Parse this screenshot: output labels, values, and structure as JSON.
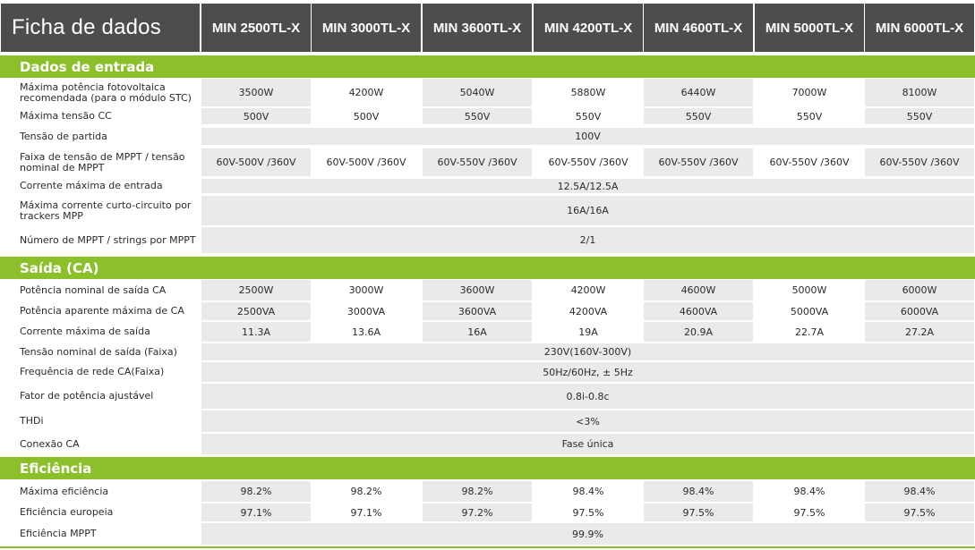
{
  "title": "Ficha de dados",
  "models": [
    "MIN 2500TL-X",
    "MIN 3000TL-X",
    "MIN 3600TL-X",
    "MIN 4200TL-X",
    "MIN 4600TL-X",
    "MIN 5000TL-X",
    "MIN 6000TL-X"
  ],
  "colors": {
    "header_bg": "#4d4d4f",
    "section_bg": "#8cc02a",
    "cell_shade": "#eaeaea"
  },
  "sections": [
    {
      "title": "Dados de entrada",
      "rows": [
        {
          "label": "Máxima  potência fotovoltaica recomendada (para o módulo STC)",
          "values": [
            "3500W",
            "4200W",
            "5040W",
            "5880W",
            "6440W",
            "7000W",
            "8100W"
          ]
        },
        {
          "label": "Máxima tensão CC",
          "values": [
            "500V",
            "500V",
            "550V",
            "550V",
            "550V",
            "550V",
            "550V"
          ]
        },
        {
          "label": "Tensão de partida",
          "value": "100V"
        },
        {
          "label": "Faixa de tensão de MPPT / tensão nominal de MPPT",
          "values": [
            "60V-500V /360V",
            "60V-500V /360V",
            "60V-550V /360V",
            "60V-550V /360V",
            "60V-550V /360V",
            "60V-550V /360V",
            "60V-550V /360V"
          ]
        },
        {
          "label": "Corrente máxima de entrada",
          "value": "12.5A/12.5A"
        },
        {
          "label": "Máxima corrente curto-circuito por trackers MPP",
          "value": "16A/16A"
        },
        {
          "label": "Número de MPPT / strings por MPPT",
          "value": "2/1"
        }
      ]
    },
    {
      "title": "Saída (CA)",
      "rows": [
        {
          "label": "Potência nominal de saída CA",
          "values": [
            "2500W",
            "3000W",
            "3600W",
            "4200W",
            "4600W",
            "5000W",
            "6000W"
          ]
        },
        {
          "label": "Potência aparente máxima de CA",
          "values": [
            "2500VA",
            "3000VA",
            "3600VA",
            "4200VA",
            "4600VA",
            "5000VA",
            "6000VA"
          ]
        },
        {
          "label": "Corrente máxima de saída",
          "values": [
            "11.3A",
            "13.6A",
            "16A",
            "19A",
            "20.9A",
            "22.7A",
            "27.2A"
          ]
        },
        {
          "label": "Tensão nominal de saída (Faixa)",
          "value": "230V(160V-300V)"
        },
        {
          "label": "Frequência de rede CA(Faixa)",
          "value": "50Hz/60Hz, ± 5Hz"
        },
        {
          "label": "Fator de potência ajustável",
          "value": "0.8i-0.8c"
        },
        {
          "label": "THDi",
          "value": "<3%"
        },
        {
          "label": "Conexão CA",
          "value": "Fase única"
        }
      ]
    },
    {
      "title": "Eficiência",
      "rows": [
        {
          "label": "Máxima eficiência",
          "values": [
            "98.2%",
            "98.2%",
            "98.2%",
            "98.4%",
            "98.4%",
            "98.4%",
            "98.4%"
          ]
        },
        {
          "label": "Eficiência europeia",
          "values": [
            "97.1%",
            "97.1%",
            "97.2%",
            "97.5%",
            "97.5%",
            "97.5%",
            "97.5%"
          ]
        },
        {
          "label": " Eficiência MPPT",
          "value": "99.9%"
        }
      ]
    }
  ]
}
